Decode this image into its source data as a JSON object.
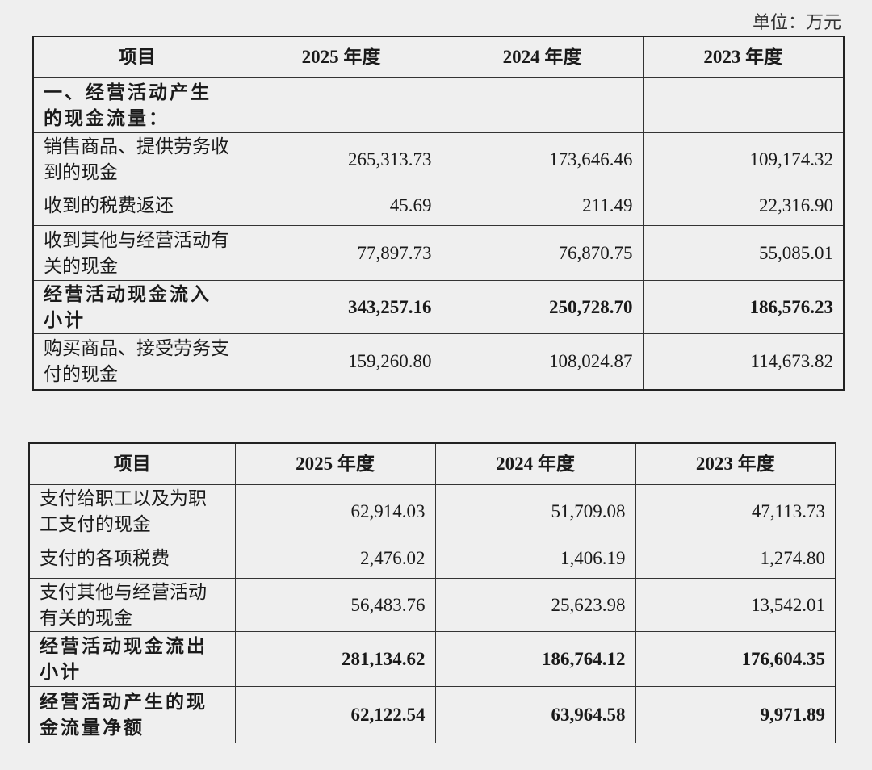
{
  "unit": "单位：万元",
  "table1": {
    "header": [
      "项目",
      "2025 年度",
      "2024 年度",
      "2023 年度"
    ],
    "rows": [
      [
        "一、经营活动产生的现金流量：",
        "",
        "",
        ""
      ],
      [
        "销售商品、提供劳务收到的现金",
        "265,313.73",
        "173,646.46",
        "109,174.32"
      ],
      [
        "收到的税费返还",
        "45.69",
        "211.49",
        "22,316.90"
      ],
      [
        "收到其他与经营活动有关的现金",
        "77,897.73",
        "76,870.75",
        "55,085.01"
      ],
      [
        "经营活动现金流入小计",
        "343,257.16",
        "250,728.70",
        "186,576.23"
      ],
      [
        "购买商品、接受劳务支付的现金",
        "159,260.80",
        "108,024.87",
        "114,673.82"
      ]
    ]
  },
  "table2": {
    "header": [
      "项目",
      "2025 年度",
      "2024 年度",
      "2023 年度"
    ],
    "rows": [
      [
        "支付给职工以及为职工支付的现金",
        "62,914.03",
        "51,709.08",
        "47,113.73"
      ],
      [
        "支付的各项税费",
        "2,476.02",
        "1,406.19",
        "1,274.80"
      ],
      [
        "支付其他与经营活动有关的现金",
        "56,483.76",
        "25,623.98",
        "13,542.01"
      ],
      [
        "经营活动现金流出小计",
        "281,134.62",
        "186,764.12",
        "176,604.35"
      ],
      [
        "经营活动产生的现金流量净额",
        "62,122.54",
        "63,964.58",
        "9,971.89"
      ]
    ]
  }
}
